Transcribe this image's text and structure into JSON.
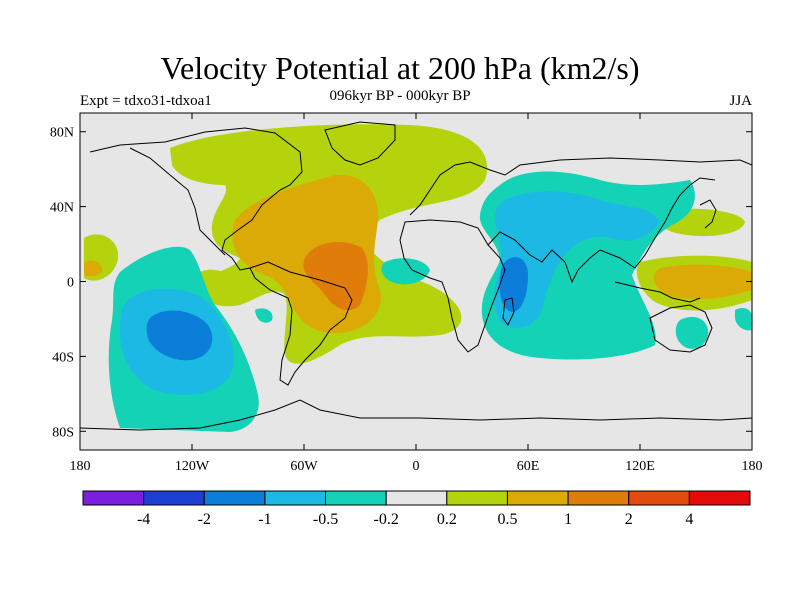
{
  "title": "Velocity Potential at 200 hPa (km2/s)",
  "subtitle": "096kyr BP - 000kyr BP",
  "left_label": "Expt = tdxo31-tdxoa1",
  "right_label": "JJA",
  "x_ticks": [
    "180",
    "120W",
    "60W",
    "0",
    "60E",
    "120E",
    "180"
  ],
  "y_ticks": [
    "80N",
    "40N",
    "0",
    "40S",
    "80S"
  ],
  "colorbar": {
    "colors": [
      "#7a1ee0",
      "#1e3fd6",
      "#0a7ed8",
      "#1bb9e3",
      "#14d2b5",
      "#e6e6e6",
      "#b5d30c",
      "#dcaa07",
      "#e07d0a",
      "#e24b0c",
      "#e40b0b"
    ],
    "labels": [
      "-4",
      "-2",
      "-1",
      "-0.5",
      "-0.2",
      "0.2",
      "0.5",
      "1",
      "2",
      "4"
    ]
  }
}
